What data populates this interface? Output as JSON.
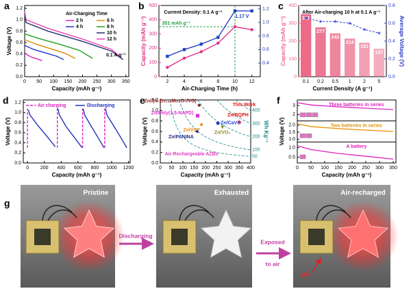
{
  "chart_data": [
    {
      "panel": "a",
      "type": "line",
      "xlabel": "Capacity (mAh g⁻¹)",
      "ylabel": "Voltage (V)",
      "xlim": [
        0,
        360
      ],
      "xticks": [
        0,
        50,
        100,
        150,
        200,
        250,
        300,
        350
      ],
      "ylim": [
        0,
        1.25
      ],
      "yticks": [
        {
          "value": 0,
          "label": "0.0"
        },
        0.2,
        0.4,
        0.6,
        0.8,
        {
          "value": 1,
          "label": "1.0"
        },
        1.2
      ],
      "legend_title": "Air-Charging Time",
      "annotations": [
        "0.1 A g⁻¹"
      ],
      "series": [
        {
          "name": "2 h",
          "color": "#e020c0",
          "x": [
            0,
            10,
            25,
            45,
            60
          ],
          "values": [
            0.42,
            0.38,
            0.34,
            0.31,
            0.28
          ]
        },
        {
          "name": "4 h",
          "color": "#2030d0",
          "x": [
            0,
            30,
            70,
            110,
            135
          ],
          "values": [
            0.55,
            0.48,
            0.42,
            0.36,
            0.3
          ]
        },
        {
          "name": "6 h",
          "color": "#e08a00",
          "x": [
            0,
            40,
            90,
            140,
            175
          ],
          "values": [
            0.65,
            0.57,
            0.49,
            0.41,
            0.32
          ]
        },
        {
          "name": "8 h",
          "color": "#20a020",
          "x": [
            0,
            50,
            120,
            190,
            235
          ],
          "values": [
            0.75,
            0.67,
            0.57,
            0.46,
            0.32
          ]
        },
        {
          "name": "10 h",
          "color": "#203070",
          "x": [
            0,
            5,
            80,
            200,
            300,
            340
          ],
          "values": [
            1.1,
            0.95,
            0.8,
            0.62,
            0.45,
            0.3
          ]
        },
        {
          "name": "12 h",
          "color": "#f040b0",
          "x": [
            0,
            5,
            80,
            200,
            300,
            335
          ],
          "values": [
            1.15,
            1.0,
            0.85,
            0.66,
            0.48,
            0.33
          ]
        }
      ]
    },
    {
      "panel": "b",
      "type": "line",
      "xlabel": "Air-Charging Time (h)",
      "ylabel": "Capacity (mAh g⁻¹)",
      "x": [
        2,
        4,
        6,
        8,
        10,
        12
      ],
      "xlim": [
        1,
        13
      ],
      "xticks": [
        2,
        4,
        6,
        8,
        10,
        12
      ],
      "ylim": [
        0,
        500
      ],
      "yticks": [
        0,
        100,
        200,
        300,
        400,
        500
      ],
      "y2lim": [
        0.2,
        1.25
      ],
      "y2ticks": [
        0.4,
        0.6,
        0.8,
        {
          "value": 1,
          "label": "1.0"
        },
        1.2
      ],
      "markers": true,
      "reference_lines": true,
      "annotations": [
        "Current Density: 0.1 A g⁻¹",
        "351 mAh g⁻¹",
        "1.17 V"
      ],
      "series": [
        {
          "color": "#e0308a",
          "values": [
            65,
            130,
            175,
            235,
            351,
            330
          ]
        },
        {
          "color": "#2040c0",
          "axis": "y2",
          "values": [
            0.5,
            0.6,
            0.68,
            0.78,
            1.17,
            1.17
          ]
        }
      ]
    },
    {
      "panel": "c",
      "type": "bar",
      "xlabel": "Current Density (A g⁻¹)",
      "ylabel": "Capacity (mAh g⁻¹)",
      "y2label": "Average Voltage (V)",
      "annotations": [
        "After Air-charging 10 h at 0.1 A g⁻¹"
      ],
      "categories": [
        "0.1",
        "0.2",
        "0.5",
        "1",
        "2",
        "5"
      ],
      "values": [
        351,
        277,
        243,
        214,
        191,
        157
      ],
      "color": "#ec6a88",
      "ylim": [
        0,
        400
      ],
      "yticks": [
        0,
        100,
        200,
        300,
        400
      ],
      "y2lim": [
        0,
        0.8
      ],
      "y2ticks": [
        {
          "value": 0,
          "label": "0.0"
        },
        0.2,
        0.4,
        0.6,
        0.8
      ],
      "series": [
        {
          "axis": "y2",
          "color": "#2a3ccc",
          "values": [
            0.66,
            0.62,
            0.62,
            0.6,
            0.53,
            0.49
          ]
        }
      ]
    },
    {
      "panel": "d",
      "type": "line",
      "xlabel": "Capacity (mAh g⁻¹)",
      "ylabel": "Voltage (V)",
      "xlim": [
        -50,
        1220
      ],
      "xticks": [
        0,
        200,
        400,
        600,
        800,
        1000,
        1200
      ],
      "ylim": [
        0,
        1.25
      ],
      "yticks": [
        {
          "value": 0,
          "label": "0.0"
        },
        0.2,
        0.4,
        0.6,
        0.8,
        {
          "value": 1,
          "label": "1.0"
        },
        1.2
      ],
      "legend": "top",
      "series": [
        {
          "name": "Air charging",
          "color": "#e020c0",
          "dashed": true,
          "x": [
            0,
            0,
            5,
            355,
            355,
            358,
            655,
            655,
            658,
            918,
            918
          ],
          "values": [
            0.3,
            1.08,
            null,
            0.3,
            1.08,
            null,
            0.3,
            1.08,
            null,
            0.3,
            1.08
          ]
        },
        {
          "name": "Discharging",
          "color": "#2030c0",
          "x": [
            10,
            30,
            120,
            220,
            330,
            345,
            360,
            380,
            460,
            560,
            650,
            655,
            660,
            680,
            760,
            840,
            910,
            915,
            925,
            945,
            1030,
            1110,
            1180
          ],
          "values": [
            1.05,
            0.95,
            0.75,
            0.55,
            0.32,
            null,
            1.08,
            0.95,
            0.72,
            0.5,
            0.3,
            null,
            1.08,
            0.95,
            0.72,
            0.5,
            0.3,
            null,
            1.08,
            0.95,
            0.72,
            0.5,
            0.3
          ]
        }
      ]
    },
    {
      "panel": "e",
      "type": "scatter",
      "xlabel": "Capacity (mAh g⁻¹)",
      "ylabel": "Voltage (V)",
      "y2label": "Wh Kg⁻¹",
      "xlim": [
        0,
        400
      ],
      "xticks": [
        0,
        50,
        100,
        150,
        200,
        250,
        300,
        350,
        400
      ],
      "ylim": [
        0,
        1.2
      ],
      "yticks": [
        {
          "value": 0,
          "label": "0.0"
        },
        0.2,
        0.4,
        0.6,
        0.8,
        {
          "value": 1,
          "label": "1.0"
        },
        1.2
      ],
      "energy_contours": [
        50,
        100,
        200,
        300,
        400
      ],
      "annotations": [
        "This Work",
        "Air-Rechargeable AZBs"
      ],
      "series": [
        {
          "name": "Zn//(N-Zn₁₊ₓMn₂O₄/VG)",
          "color": "#8b1a1a",
          "marker": "diamond",
          "x": [
            172
          ],
          "values": [
            1.1
          ]
        },
        {
          "name": "Zn/Poly(1,5-NAPD)",
          "color": "#e030d0",
          "marker": "square",
          "x": [
            165
          ],
          "values": [
            0.9
          ]
        },
        {
          "name": "Zn/CaVO",
          "color": "#2040d0",
          "marker": "circle",
          "x": [
            255
          ],
          "values": [
            0.76
          ]
        },
        {
          "name": "Zn/VCF",
          "color": "#f08a10",
          "marker": "diamond",
          "x": [
            182
          ],
          "values": [
            0.73
          ]
        },
        {
          "name": "Zn/VO₂",
          "color": "#8a8a20",
          "marker": "triangle",
          "x": [
            275
          ],
          "values": [
            0.68
          ]
        },
        {
          "name": "Zn/PANINA",
          "color": "#202a80",
          "marker": "triangle-left",
          "x": [
            160
          ],
          "values": [
            0.6
          ]
        },
        {
          "name": "Zn/BQPH",
          "color": "#e01010",
          "marker": "star",
          "x": [
            350
          ],
          "values": [
            0.78
          ]
        }
      ]
    },
    {
      "panel": "f",
      "type": "line",
      "xlabel": "Capacity (mAh g⁻¹)",
      "ylabel": "Voltage (V)",
      "xlim": [
        0,
        360
      ],
      "xticks": [
        0,
        50,
        100,
        150,
        200,
        250,
        300,
        350
      ],
      "subplots": [
        {
          "ylim": [
            1.3,
            3.6
          ],
          "yticks": [
            2,
            3
          ],
          "series": [
            {
              "name": "Three batteries in series",
              "color": "#e020c0",
              "x": [
                0,
                50,
                150,
                250,
                350
              ],
              "values": [
                3.3,
                3.05,
                2.85,
                2.7,
                2.55
              ]
            }
          ]
        },
        {
          "ylim": [
            0.8,
            2.3
          ],
          "yticks": [
            {
              "value": 1,
              "label": "1.0"
            },
            1.5,
            {
              "value": 2,
              "label": "2.0"
            }
          ],
          "series": [
            {
              "name": "Two batteries in series",
              "color": "#e89000",
              "x": [
                0,
                50,
                150,
                250,
                350
              ],
              "values": [
                2.1,
                1.9,
                1.75,
                1.65,
                1.55
              ]
            }
          ]
        },
        {
          "ylim": [
            0.2,
            1.3
          ],
          "yticks": [
            0.5,
            {
              "value": 1,
              "label": "1.0"
            }
          ],
          "series": [
            {
              "name": "A battery",
              "color": "#e020c0",
              "x": [
                0,
                50,
                150,
                250,
                350
              ],
              "values": [
                1.1,
                0.9,
                0.7,
                0.55,
                0.4
              ]
            }
          ]
        }
      ]
    }
  ],
  "photos": {
    "panel": "g",
    "labels": [
      "Pristine",
      "Exhausted",
      "Air-recharged"
    ],
    "arrow_labels": [
      "Discharging",
      "Exposed",
      "to air"
    ],
    "marker": "Air"
  }
}
